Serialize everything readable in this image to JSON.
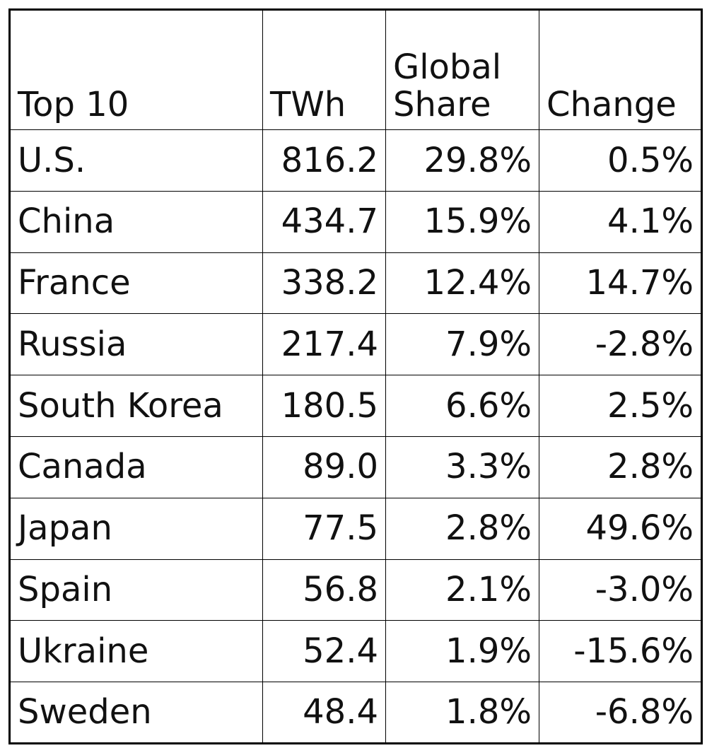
{
  "chart_data": {
    "type": "table",
    "columns": [
      "Top 10",
      "TWh",
      "Global Share",
      "Change"
    ],
    "rows": [
      [
        "U.S.",
        "816.2",
        "29.8%",
        "0.5%"
      ],
      [
        "China",
        "434.7",
        "15.9%",
        "4.1%"
      ],
      [
        "France",
        "338.2",
        "12.4%",
        "14.7%"
      ],
      [
        "Russia",
        "217.4",
        "7.9%",
        "-2.8%"
      ],
      [
        "South Korea",
        "180.5",
        "6.6%",
        "2.5%"
      ],
      [
        "Canada",
        "89.0",
        "3.3%",
        "2.8%"
      ],
      [
        "Japan",
        "77.5",
        "2.8%",
        "49.6%"
      ],
      [
        "Spain",
        "56.8",
        "2.1%",
        "-3.0%"
      ],
      [
        "Ukraine",
        "52.4",
        "1.9%",
        "-15.6%"
      ],
      [
        "Sweden",
        "48.4",
        "1.8%",
        "-6.8%"
      ]
    ]
  }
}
